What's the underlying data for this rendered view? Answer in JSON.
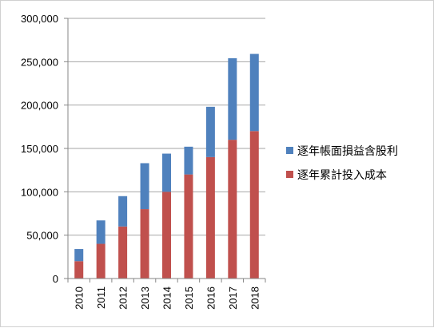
{
  "chart_data": {
    "type": "bar",
    "stacked": true,
    "categories": [
      "2010",
      "2011",
      "2012",
      "2013",
      "2014",
      "2015",
      "2016",
      "2017",
      "2018"
    ],
    "series": [
      {
        "name": "逐年累計投入成本",
        "color": "#c0504d",
        "values": [
          20000,
          40000,
          60000,
          80000,
          100000,
          120000,
          140000,
          160000,
          170000
        ]
      },
      {
        "name": "逐年帳面損益含股利",
        "color": "#4f81bd",
        "values": [
          14000,
          27000,
          35000,
          53000,
          44000,
          32000,
          58000,
          94000,
          89000
        ]
      }
    ],
    "title": "",
    "xlabel": "",
    "ylabel": "",
    "ylim": [
      0,
      300000
    ],
    "yticks": [
      0,
      50000,
      100000,
      150000,
      200000,
      250000,
      300000
    ],
    "ytick_labels": [
      "0",
      "50,000",
      "100,000",
      "150,000",
      "200,000",
      "250,000",
      "300,000"
    ],
    "grid": true,
    "legend_position": "right",
    "legend": [
      {
        "name": "逐年帳面損益含股利",
        "color": "#4f81bd"
      },
      {
        "name": "逐年累計投入成本",
        "color": "#c0504d"
      }
    ]
  }
}
